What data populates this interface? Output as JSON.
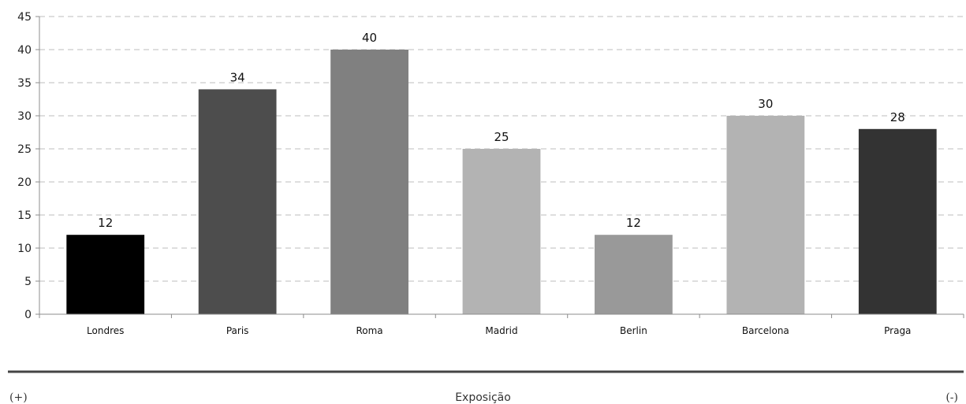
{
  "chart_data": {
    "type": "bar",
    "categories": [
      "Londres",
      "Paris",
      "Roma",
      "Madrid",
      "Berlin",
      "Barcelona",
      "Praga"
    ],
    "values": [
      12,
      34,
      40,
      25,
      12,
      30,
      28
    ],
    "data_labels": [
      "12",
      "34",
      "40",
      "25",
      "12",
      "30",
      "28"
    ],
    "bar_colors": [
      "#000000",
      "#4d4d4d",
      "#808080",
      "#b3b3b3",
      "#999999",
      "#b3b3b3",
      "#333333"
    ],
    "ylim": [
      0,
      45
    ],
    "yticks": [
      0,
      5,
      10,
      15,
      20,
      25,
      30,
      35,
      40,
      45
    ],
    "grid": true,
    "legend": "none"
  },
  "footer": {
    "left": "(+)",
    "center": "Exposição",
    "right": "(-)"
  },
  "colors": {
    "grid": "#bdbdbd",
    "axis": "#8c8c8c",
    "divider": "#444444"
  }
}
